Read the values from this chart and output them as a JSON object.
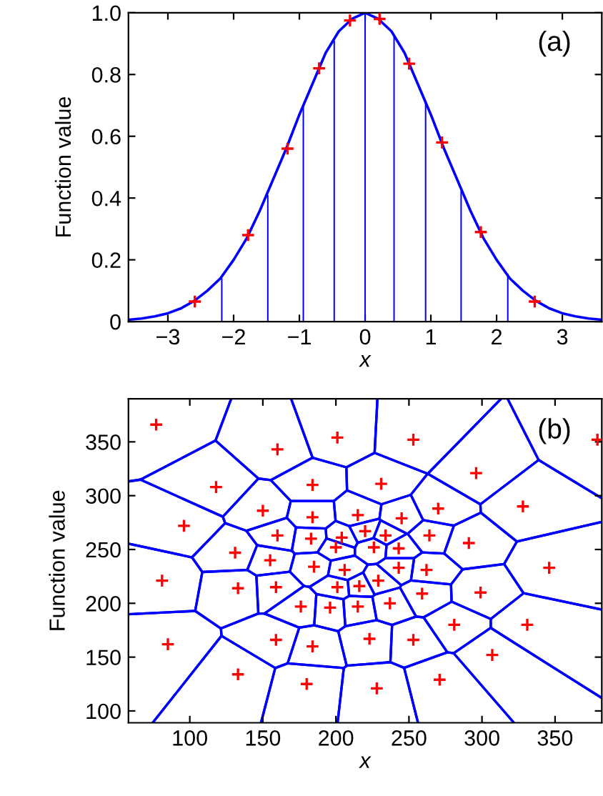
{
  "chart_data": [
    {
      "type": "line",
      "ylabel": "Function value",
      "xlabel": "x",
      "annotations": [
        "(a)"
      ],
      "xlim": [
        -3.6,
        3.6
      ],
      "ylim": [
        0,
        1.0
      ],
      "xticks": [
        {
          "value": -3,
          "label": "−3"
        },
        {
          "value": -2,
          "label": "−2"
        },
        {
          "value": -1,
          "label": "−1"
        },
        0,
        1,
        2,
        3
      ],
      "yticks": [
        0,
        0.2,
        0.4,
        0.6,
        0.8,
        {
          "value": 1,
          "label": "1.0"
        }
      ],
      "grid": false,
      "legend": false,
      "series": [
        {
          "type": "line",
          "color": "#0000ff",
          "marker": "none",
          "line_style": "solid",
          "x": [
            -3.6,
            -3.4,
            -3.2,
            -3.0,
            -2.8,
            -2.6,
            -2.4,
            -2.2,
            -2.0,
            -1.8,
            -1.6,
            -1.4,
            -1.2,
            -1.0,
            -0.8,
            -0.6,
            -0.4,
            -0.2,
            0,
            0.2,
            0.4,
            0.6,
            0.8,
            1.0,
            1.2,
            1.4,
            1.6,
            1.8,
            2.0,
            2.2,
            2.4,
            2.6,
            2.8,
            3.0,
            3.2,
            3.4,
            3.6
          ],
          "values": [
            0.006,
            0.01,
            0.017,
            0.027,
            0.043,
            0.067,
            0.1,
            0.14,
            0.2,
            0.27,
            0.36,
            0.46,
            0.56,
            0.67,
            0.77,
            0.87,
            0.94,
            0.98,
            1.0,
            0.98,
            0.94,
            0.87,
            0.77,
            0.67,
            0.56,
            0.46,
            0.36,
            0.27,
            0.2,
            0.14,
            0.1,
            0.067,
            0.043,
            0.027,
            0.017,
            0.01,
            0.006
          ]
        },
        {
          "type": "bar",
          "color": "#0000ff",
          "x": [
            -2.18,
            -1.48,
            -0.94,
            -0.47,
            0,
            0.44,
            0.92,
            1.46,
            2.17
          ],
          "values": [
            0.14,
            0.41,
            0.7,
            0.91,
            1.0,
            0.925,
            0.71,
            0.425,
            0.155
          ]
        },
        {
          "type": "scatter",
          "color": "#ff0000",
          "marker": "cross",
          "x": [
            -2.59,
            -1.78,
            -1.18,
            -0.7,
            -0.23,
            0.22,
            0.67,
            1.17,
            1.76,
            2.58
          ],
          "values": [
            0.065,
            0.28,
            0.56,
            0.82,
            0.975,
            0.98,
            0.835,
            0.58,
            0.29,
            0.065
          ]
        }
      ]
    },
    {
      "type": "scatter",
      "color": "#0000ff",
      "ylabel": "Function value",
      "xlabel": "x",
      "annotations": [
        "(b)"
      ],
      "xlim": [
        58,
        382
      ],
      "ylim": [
        89,
        390
      ],
      "xticks": [
        100,
        150,
        200,
        250,
        300,
        350
      ],
      "yticks": [
        100,
        150,
        200,
        250,
        300,
        350
      ],
      "grid": false,
      "legend": false,
      "series": [
        {
          "type": "scatter",
          "color": "#ff0000",
          "marker": "cross",
          "x": [
            77,
            160,
            201,
            118,
            184,
            96,
            150,
            184,
            215,
            160,
            183,
            204,
            220,
            200,
            131,
            155,
            185,
            206,
            81,
            133,
            159,
            201,
            216,
            176,
            196,
            215,
            85,
            159,
            184,
            133,
            180,
            253,
            379,
            296,
            231,
            328,
            270,
            245,
            234,
            264,
            291,
            226,
            243,
            346,
            243,
            262,
            229,
            259,
            299,
            237,
            281,
            331,
            223,
            253,
            307,
            228,
            271
          ],
          "values": [
            366,
            343,
            354,
            308,
            310,
            272,
            286,
            280,
            282,
            263,
            260,
            261,
            267,
            252,
            247,
            240,
            234,
            231,
            221,
            214,
            215,
            215,
            216,
            197,
            196,
            197,
            162,
            166,
            160,
            134,
            125,
            352,
            352,
            321,
            311,
            290,
            288,
            279,
            263,
            263,
            256,
            252,
            251,
            233,
            233,
            231,
            221,
            209,
            210,
            200,
            180,
            180,
            167,
            166,
            152,
            121,
            129
          ]
        }
      ]
    }
  ]
}
